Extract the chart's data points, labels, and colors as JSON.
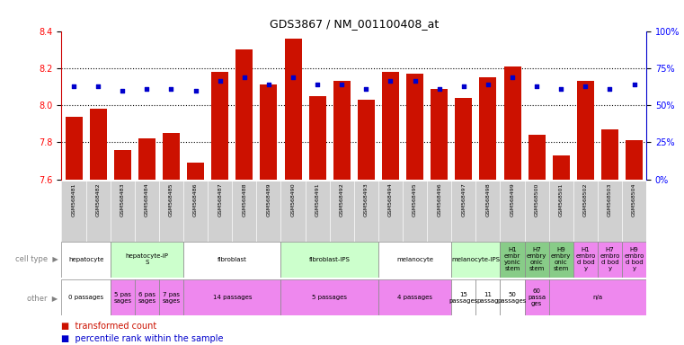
{
  "title": "GDS3867 / NM_001100408_at",
  "samples": [
    "GSM568481",
    "GSM568482",
    "GSM568483",
    "GSM568484",
    "GSM568485",
    "GSM568486",
    "GSM568487",
    "GSM568488",
    "GSM568489",
    "GSM568490",
    "GSM568491",
    "GSM568492",
    "GSM568493",
    "GSM568494",
    "GSM568495",
    "GSM568496",
    "GSM568497",
    "GSM568498",
    "GSM568499",
    "GSM568500",
    "GSM568501",
    "GSM568502",
    "GSM568503",
    "GSM568504"
  ],
  "bar_values": [
    7.94,
    7.98,
    7.76,
    7.82,
    7.85,
    7.69,
    8.18,
    8.3,
    8.11,
    8.36,
    8.05,
    8.13,
    8.03,
    8.18,
    8.17,
    8.09,
    8.04,
    8.15,
    8.21,
    7.84,
    7.73,
    8.13,
    7.87,
    7.81
  ],
  "dot_values": [
    8.1,
    8.1,
    8.08,
    8.09,
    8.09,
    8.08,
    8.13,
    8.15,
    8.11,
    8.15,
    8.11,
    8.11,
    8.09,
    8.13,
    8.13,
    8.09,
    8.1,
    8.11,
    8.15,
    8.1,
    8.09,
    8.1,
    8.09,
    8.11
  ],
  "ylim_low": 7.6,
  "ylim_high": 8.4,
  "yticks_left": [
    7.6,
    7.8,
    8.0,
    8.2,
    8.4
  ],
  "right_pcts": [
    0,
    25,
    50,
    75,
    100
  ],
  "right_labels": [
    "0%",
    "25%",
    "50%",
    "75%",
    "100%"
  ],
  "bar_color": "#CC1100",
  "dot_color": "#0000CC",
  "cell_groups": [
    {
      "label": "hepatocyte",
      "cols": [
        0,
        1
      ],
      "color": "#ffffff"
    },
    {
      "label": "hepatocyte-iP\nS",
      "cols": [
        2,
        3,
        4
      ],
      "color": "#ccffcc"
    },
    {
      "label": "fibroblast",
      "cols": [
        5,
        6,
        7,
        8
      ],
      "color": "#ffffff"
    },
    {
      "label": "fibroblast-IPS",
      "cols": [
        9,
        10,
        11,
        12
      ],
      "color": "#ccffcc"
    },
    {
      "label": "melanocyte",
      "cols": [
        13,
        14,
        15
      ],
      "color": "#ffffff"
    },
    {
      "label": "melanocyte-IPS",
      "cols": [
        16,
        17
      ],
      "color": "#ccffcc"
    },
    {
      "label": "H1\nembr\nyonic\nstem",
      "cols": [
        18
      ],
      "color": "#88cc88"
    },
    {
      "label": "H7\nembry\nonic\nstem",
      "cols": [
        19
      ],
      "color": "#88cc88"
    },
    {
      "label": "H9\nembry\nonic\nstem",
      "cols": [
        20
      ],
      "color": "#88cc88"
    },
    {
      "label": "H1\nembro\nd bod\ny",
      "cols": [
        21
      ],
      "color": "#ee88ee"
    },
    {
      "label": "H7\nembro\nd bod\ny",
      "cols": [
        22
      ],
      "color": "#ee88ee"
    },
    {
      "label": "H9\nembro\nd bod\ny",
      "cols": [
        23
      ],
      "color": "#ee88ee"
    }
  ],
  "other_groups": [
    {
      "label": "0 passages",
      "cols": [
        0,
        1
      ],
      "color": "#ffffff"
    },
    {
      "label": "5 pas\nsages",
      "cols": [
        2
      ],
      "color": "#ee88ee"
    },
    {
      "label": "6 pas\nsages",
      "cols": [
        3
      ],
      "color": "#ee88ee"
    },
    {
      "label": "7 pas\nsages",
      "cols": [
        4
      ],
      "color": "#ee88ee"
    },
    {
      "label": "14 passages",
      "cols": [
        5,
        6,
        7,
        8
      ],
      "color": "#ee88ee"
    },
    {
      "label": "5 passages",
      "cols": [
        9,
        10,
        11,
        12
      ],
      "color": "#ee88ee"
    },
    {
      "label": "4 passages",
      "cols": [
        13,
        14,
        15
      ],
      "color": "#ee88ee"
    },
    {
      "label": "15\npassages",
      "cols": [
        16
      ],
      "color": "#ffffff"
    },
    {
      "label": "11\npassag",
      "cols": [
        17
      ],
      "color": "#ffffff"
    },
    {
      "label": "50\npassages",
      "cols": [
        18
      ],
      "color": "#ffffff"
    },
    {
      "label": "60\npassa\nges",
      "cols": [
        19
      ],
      "color": "#ee88ee"
    },
    {
      "label": "n/a",
      "cols": [
        20,
        21,
        22,
        23
      ],
      "color": "#ee88ee"
    }
  ],
  "legend_red": "transformed count",
  "legend_blue": "percentile rank within the sample",
  "samp_bg": "#d0d0d0",
  "label_fontsize": 5,
  "tick_fontsize": 7
}
